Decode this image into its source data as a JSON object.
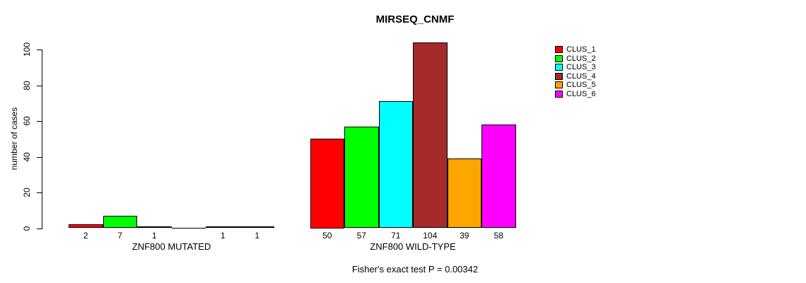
{
  "title": "MIRSEQ_CNMF",
  "footer": "Fisher's exact test P = 0.00342",
  "y_axis": {
    "label": "number of cases",
    "ticks": [
      0,
      20,
      40,
      60,
      80,
      100
    ]
  },
  "legend": {
    "items": [
      {
        "label": "CLUS_1",
        "color": "#FF0000"
      },
      {
        "label": "CLUS_2",
        "color": "#00FF00"
      },
      {
        "label": "CLUS_3",
        "color": "#00FFFF"
      },
      {
        "label": "CLUS_4",
        "color": "#A52A2A"
      },
      {
        "label": "CLUS_5",
        "color": "#FFA500"
      },
      {
        "label": "CLUS_6",
        "color": "#FF00FF"
      }
    ]
  },
  "chart_data": {
    "type": "bar",
    "title": "MIRSEQ_CNMF",
    "ylabel": "number of cases",
    "ylim": [
      0,
      100
    ],
    "grid": false,
    "legend_position": "right-inside",
    "series_names": [
      "CLUS_1",
      "CLUS_2",
      "CLUS_3",
      "CLUS_4",
      "CLUS_5",
      "CLUS_6"
    ],
    "series_colors": [
      "#FF0000",
      "#00FF00",
      "#00FFFF",
      "#A52A2A",
      "#FFA500",
      "#FF00FF"
    ],
    "groups": [
      {
        "label": "ZNF800 MUTATED",
        "values": [
          2,
          7,
          1,
          0,
          1,
          1
        ],
        "bar_labels": [
          "2",
          "7",
          "1",
          "",
          "1",
          "1"
        ]
      },
      {
        "label": "ZNF800 WILD-TYPE",
        "values": [
          50,
          57,
          71,
          104,
          39,
          58
        ],
        "bar_labels": [
          "50",
          "57",
          "71",
          "104",
          "39",
          "58"
        ]
      }
    ],
    "annotation": "Fisher's exact test P = 0.00342"
  }
}
